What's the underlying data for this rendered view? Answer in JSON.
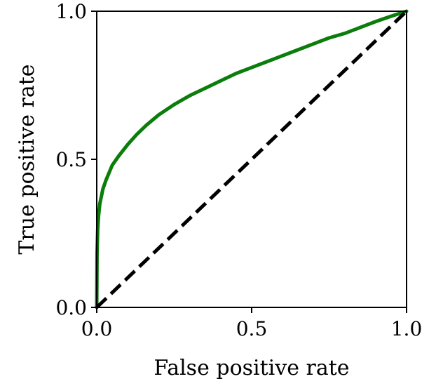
{
  "chart_data": {
    "type": "line",
    "title": "",
    "xlabel": "False positive rate",
    "ylabel": "True positive rate",
    "xlim": [
      0.0,
      1.0
    ],
    "ylim": [
      0.0,
      1.0
    ],
    "x_ticks": [
      "0.0",
      "0.5",
      "1.0"
    ],
    "y_ticks": [
      "0.0",
      "0.5",
      "1.0"
    ],
    "grid": false,
    "legend": "none",
    "series": [
      {
        "color": "#0a7d0a",
        "style": "solid",
        "x": [
          0.0,
          0.001,
          0.003,
          0.006,
          0.01,
          0.02,
          0.03,
          0.05,
          0.07,
          0.1,
          0.13,
          0.16,
          0.2,
          0.25,
          0.3,
          0.35,
          0.4,
          0.45,
          0.5,
          0.55,
          0.6,
          0.65,
          0.7,
          0.75,
          0.8,
          0.85,
          0.9,
          0.95,
          1.0
        ],
        "y": [
          0.0,
          0.18,
          0.26,
          0.31,
          0.35,
          0.4,
          0.43,
          0.48,
          0.51,
          0.55,
          0.585,
          0.615,
          0.65,
          0.685,
          0.715,
          0.74,
          0.765,
          0.79,
          0.81,
          0.83,
          0.85,
          0.87,
          0.89,
          0.91,
          0.925,
          0.945,
          0.965,
          0.983,
          1.0
        ]
      },
      {
        "color": "#000000",
        "style": "dashed",
        "x": [
          0.0,
          1.0
        ],
        "y": [
          0.0,
          1.0
        ]
      }
    ]
  }
}
